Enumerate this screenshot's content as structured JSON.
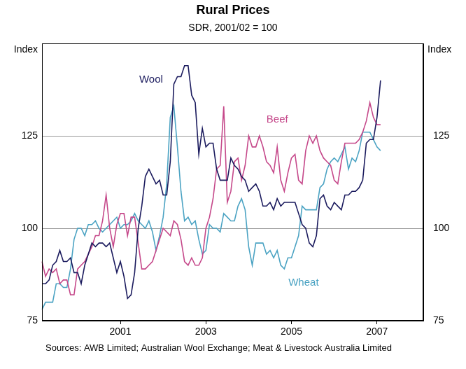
{
  "chart_data": {
    "type": "line",
    "title": "Rural Prices",
    "subtitle": "SDR, 2001/02 = 100",
    "y_label": "Index",
    "source": "Sources: AWB Limited; Australian Wool Exchange; Meat & Livestock Australia Limited",
    "categories": [
      null,
      null,
      null,
      null,
      null,
      null,
      null,
      null,
      null,
      null,
      null,
      null,
      null,
      null,
      null,
      null,
      null,
      null,
      null,
      null,
      null,
      null,
      "2001",
      null,
      null,
      null,
      null,
      null,
      null,
      null,
      null,
      null,
      null,
      null,
      null,
      null,
      null,
      null,
      null,
      null,
      null,
      null,
      null,
      null,
      null,
      null,
      "2003",
      null,
      null,
      null,
      null,
      null,
      null,
      null,
      null,
      null,
      null,
      null,
      null,
      null,
      null,
      null,
      null,
      null,
      null,
      null,
      null,
      null,
      null,
      null,
      "2005",
      null,
      null,
      null,
      null,
      null,
      null,
      null,
      null,
      null,
      null,
      null,
      null,
      null,
      null,
      null,
      null,
      null,
      null,
      null,
      null,
      null,
      null,
      null,
      "2007",
      null,
      null,
      null,
      null,
      null,
      null,
      null,
      null,
      null,
      null,
      null,
      null,
      null
    ],
    "series": [
      {
        "name": "Wool",
        "color": "#1b1b5e",
        "values": [
          85,
          85,
          86,
          90,
          91,
          94,
          91,
          91,
          92,
          88,
          88,
          85,
          90,
          93,
          96,
          95,
          96,
          96,
          95,
          96,
          92,
          88,
          91,
          87,
          81,
          82,
          88,
          100,
          106,
          114,
          116,
          114,
          112,
          113,
          109,
          109,
          118,
          139,
          141,
          141,
          144,
          144,
          136,
          134,
          120,
          127,
          122,
          123,
          123,
          116,
          113,
          113,
          113,
          119,
          117,
          116,
          114,
          113,
          110,
          111,
          112,
          110,
          106,
          106,
          107,
          105,
          108,
          106,
          107,
          107,
          107,
          107,
          104,
          101,
          100,
          96,
          95,
          98,
          108,
          109,
          106,
          105,
          107,
          106,
          105,
          109,
          109,
          110,
          110,
          111,
          113,
          123,
          124,
          124,
          130,
          140,
          null,
          null,
          null,
          null,
          null,
          null,
          null,
          null,
          null,
          null,
          null,
          null
        ]
      },
      {
        "name": "Beef",
        "color": "#c5488a",
        "values": [
          91,
          87,
          89,
          88,
          89,
          85,
          86,
          86,
          82,
          82,
          89,
          90,
          91,
          93,
          95,
          98,
          98,
          102,
          109,
          100,
          95,
          101,
          104,
          104,
          98,
          103,
          103,
          96,
          89,
          89,
          90,
          91,
          94,
          97,
          100,
          99,
          98,
          102,
          101,
          97,
          91,
          90,
          92,
          90,
          90,
          92,
          100,
          103,
          108,
          116,
          117,
          133,
          107,
          110,
          118,
          119,
          113,
          117,
          125,
          122,
          122,
          125,
          122,
          118,
          117,
          115,
          122,
          113,
          110,
          115,
          119,
          120,
          113,
          112,
          121,
          125,
          123,
          125,
          121,
          119,
          118,
          117,
          113,
          112,
          118,
          123,
          123,
          123,
          123,
          124,
          126,
          129,
          134,
          130,
          128,
          128,
          null,
          null,
          null,
          null,
          null,
          null,
          null,
          null,
          null,
          null,
          null,
          null
        ]
      },
      {
        "name": "Wheat",
        "color": "#4ba3c3",
        "values": [
          78,
          80,
          80,
          80,
          85,
          85,
          84,
          84,
          89,
          97,
          100,
          100,
          98,
          101,
          101,
          102,
          100,
          99,
          100,
          101,
          102,
          103,
          100,
          101,
          101,
          102,
          104,
          102,
          101,
          100,
          102,
          99,
          94,
          98,
          103,
          112,
          130,
          133,
          122,
          110,
          102,
          103,
          101,
          102,
          97,
          93,
          94,
          101,
          100,
          100,
          99,
          104,
          103,
          102,
          102,
          106,
          108,
          105,
          95,
          90,
          96,
          96,
          96,
          93,
          94,
          92,
          94,
          90,
          89,
          92,
          92,
          95,
          98,
          106,
          105,
          105,
          105,
          105,
          111,
          112,
          116,
          118,
          119,
          118,
          120,
          122,
          116,
          119,
          118,
          121,
          126,
          126,
          126,
          124,
          122,
          121,
          null,
          null,
          null,
          null,
          null,
          null,
          null,
          null,
          null,
          null,
          null,
          null
        ]
      }
    ],
    "ylim": [
      75,
      150
    ],
    "yticks": [
      75,
      100,
      125
    ],
    "grid": true
  }
}
